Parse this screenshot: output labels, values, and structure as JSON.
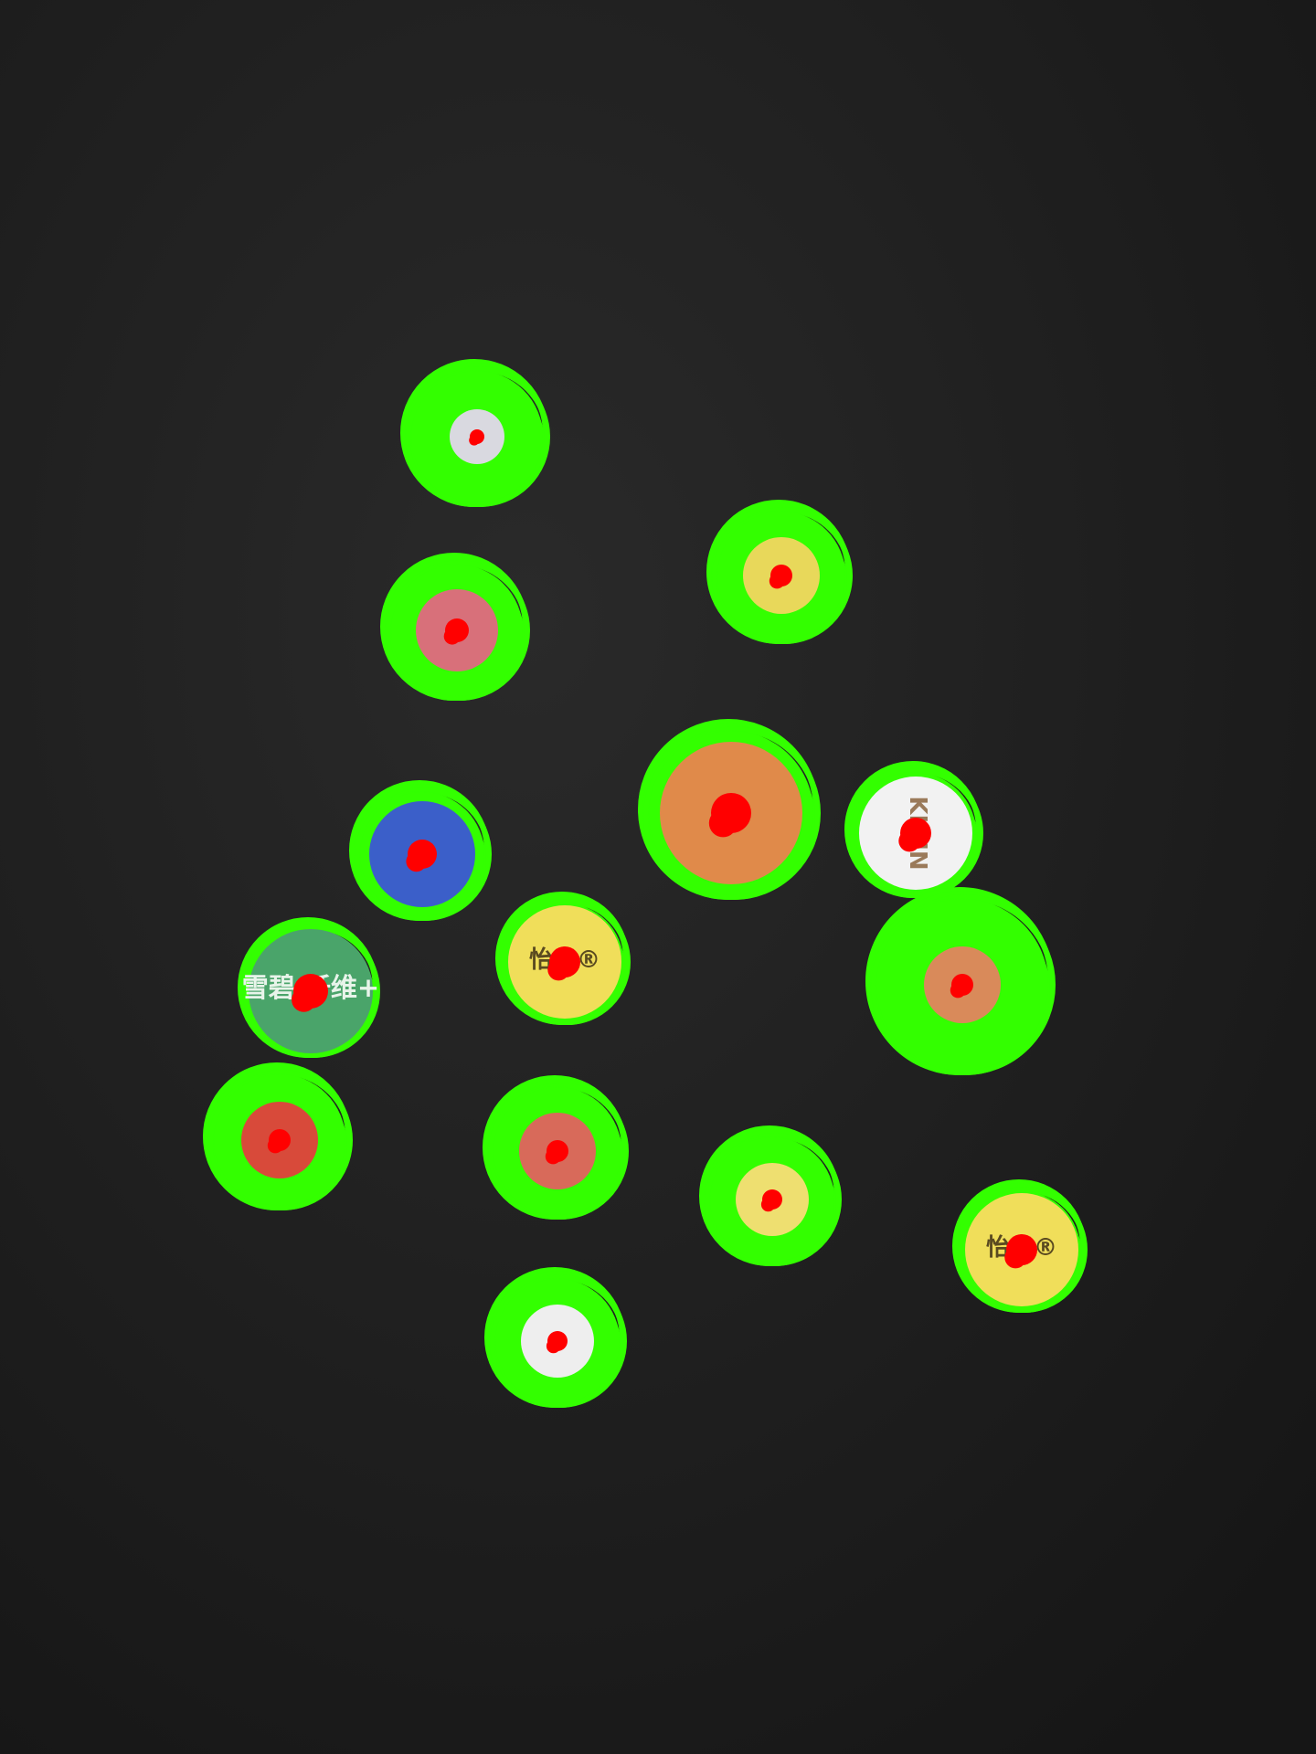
{
  "detection_style": {
    "ring_color": "#33ff00",
    "center_color": "#ff0000"
  },
  "background": {
    "cloth_color": "#1b1b1b",
    "cloth_highlight": "#2c2c2c"
  },
  "caps": [
    {
      "name": "cap-white-top",
      "fill": "#d9d9e0",
      "inner": "#c23a3a",
      "label": ""
    },
    {
      "name": "cap-pink-sprite",
      "fill": "#d8707a",
      "inner": "#e89a9a",
      "label": ""
    },
    {
      "name": "cap-yellow-top-right",
      "fill": "#e8d85a",
      "inner": "#e8d85a",
      "label": ""
    },
    {
      "name": "cap-blue",
      "fill": "#3b5fc9",
      "inner": "#3b5fc9",
      "label": ""
    },
    {
      "name": "cap-orange-large",
      "fill": "#e08a4a",
      "inner": "#e08a4a",
      "label": ""
    },
    {
      "name": "cap-white-kirin",
      "fill": "#f2f2f2",
      "inner": "#f2f2f2",
      "label": "KIRIN"
    },
    {
      "name": "cap-green-xuebi",
      "fill": "#4aa46a",
      "inner": "#4aa46a",
      "label": "雪碧 纤维+"
    },
    {
      "name": "cap-yellow-yiquan-center",
      "fill": "#f0de5a",
      "inner": "#f0de5a",
      "label": "怡泉®"
    },
    {
      "name": "cap-orange-right",
      "fill": "#d98a5a",
      "inner": "#d98a5a",
      "label": ""
    },
    {
      "name": "cap-red-left",
      "fill": "#d84a3a",
      "inner": "#d84a3a",
      "label": ""
    },
    {
      "name": "cap-red-center",
      "fill": "#d86a5a",
      "inner": "#d86a5a",
      "label": ""
    },
    {
      "name": "cap-yellow-lower",
      "fill": "#eedf70",
      "inner": "#eedf70",
      "label": ""
    },
    {
      "name": "cap-yellow-yiquan-right",
      "fill": "#f0de5a",
      "inner": "#f0de5a",
      "label": "怡泉®"
    },
    {
      "name": "cap-white-bottom",
      "fill": "#eeeeee",
      "inner": "#eeeeee",
      "label": ""
    }
  ]
}
